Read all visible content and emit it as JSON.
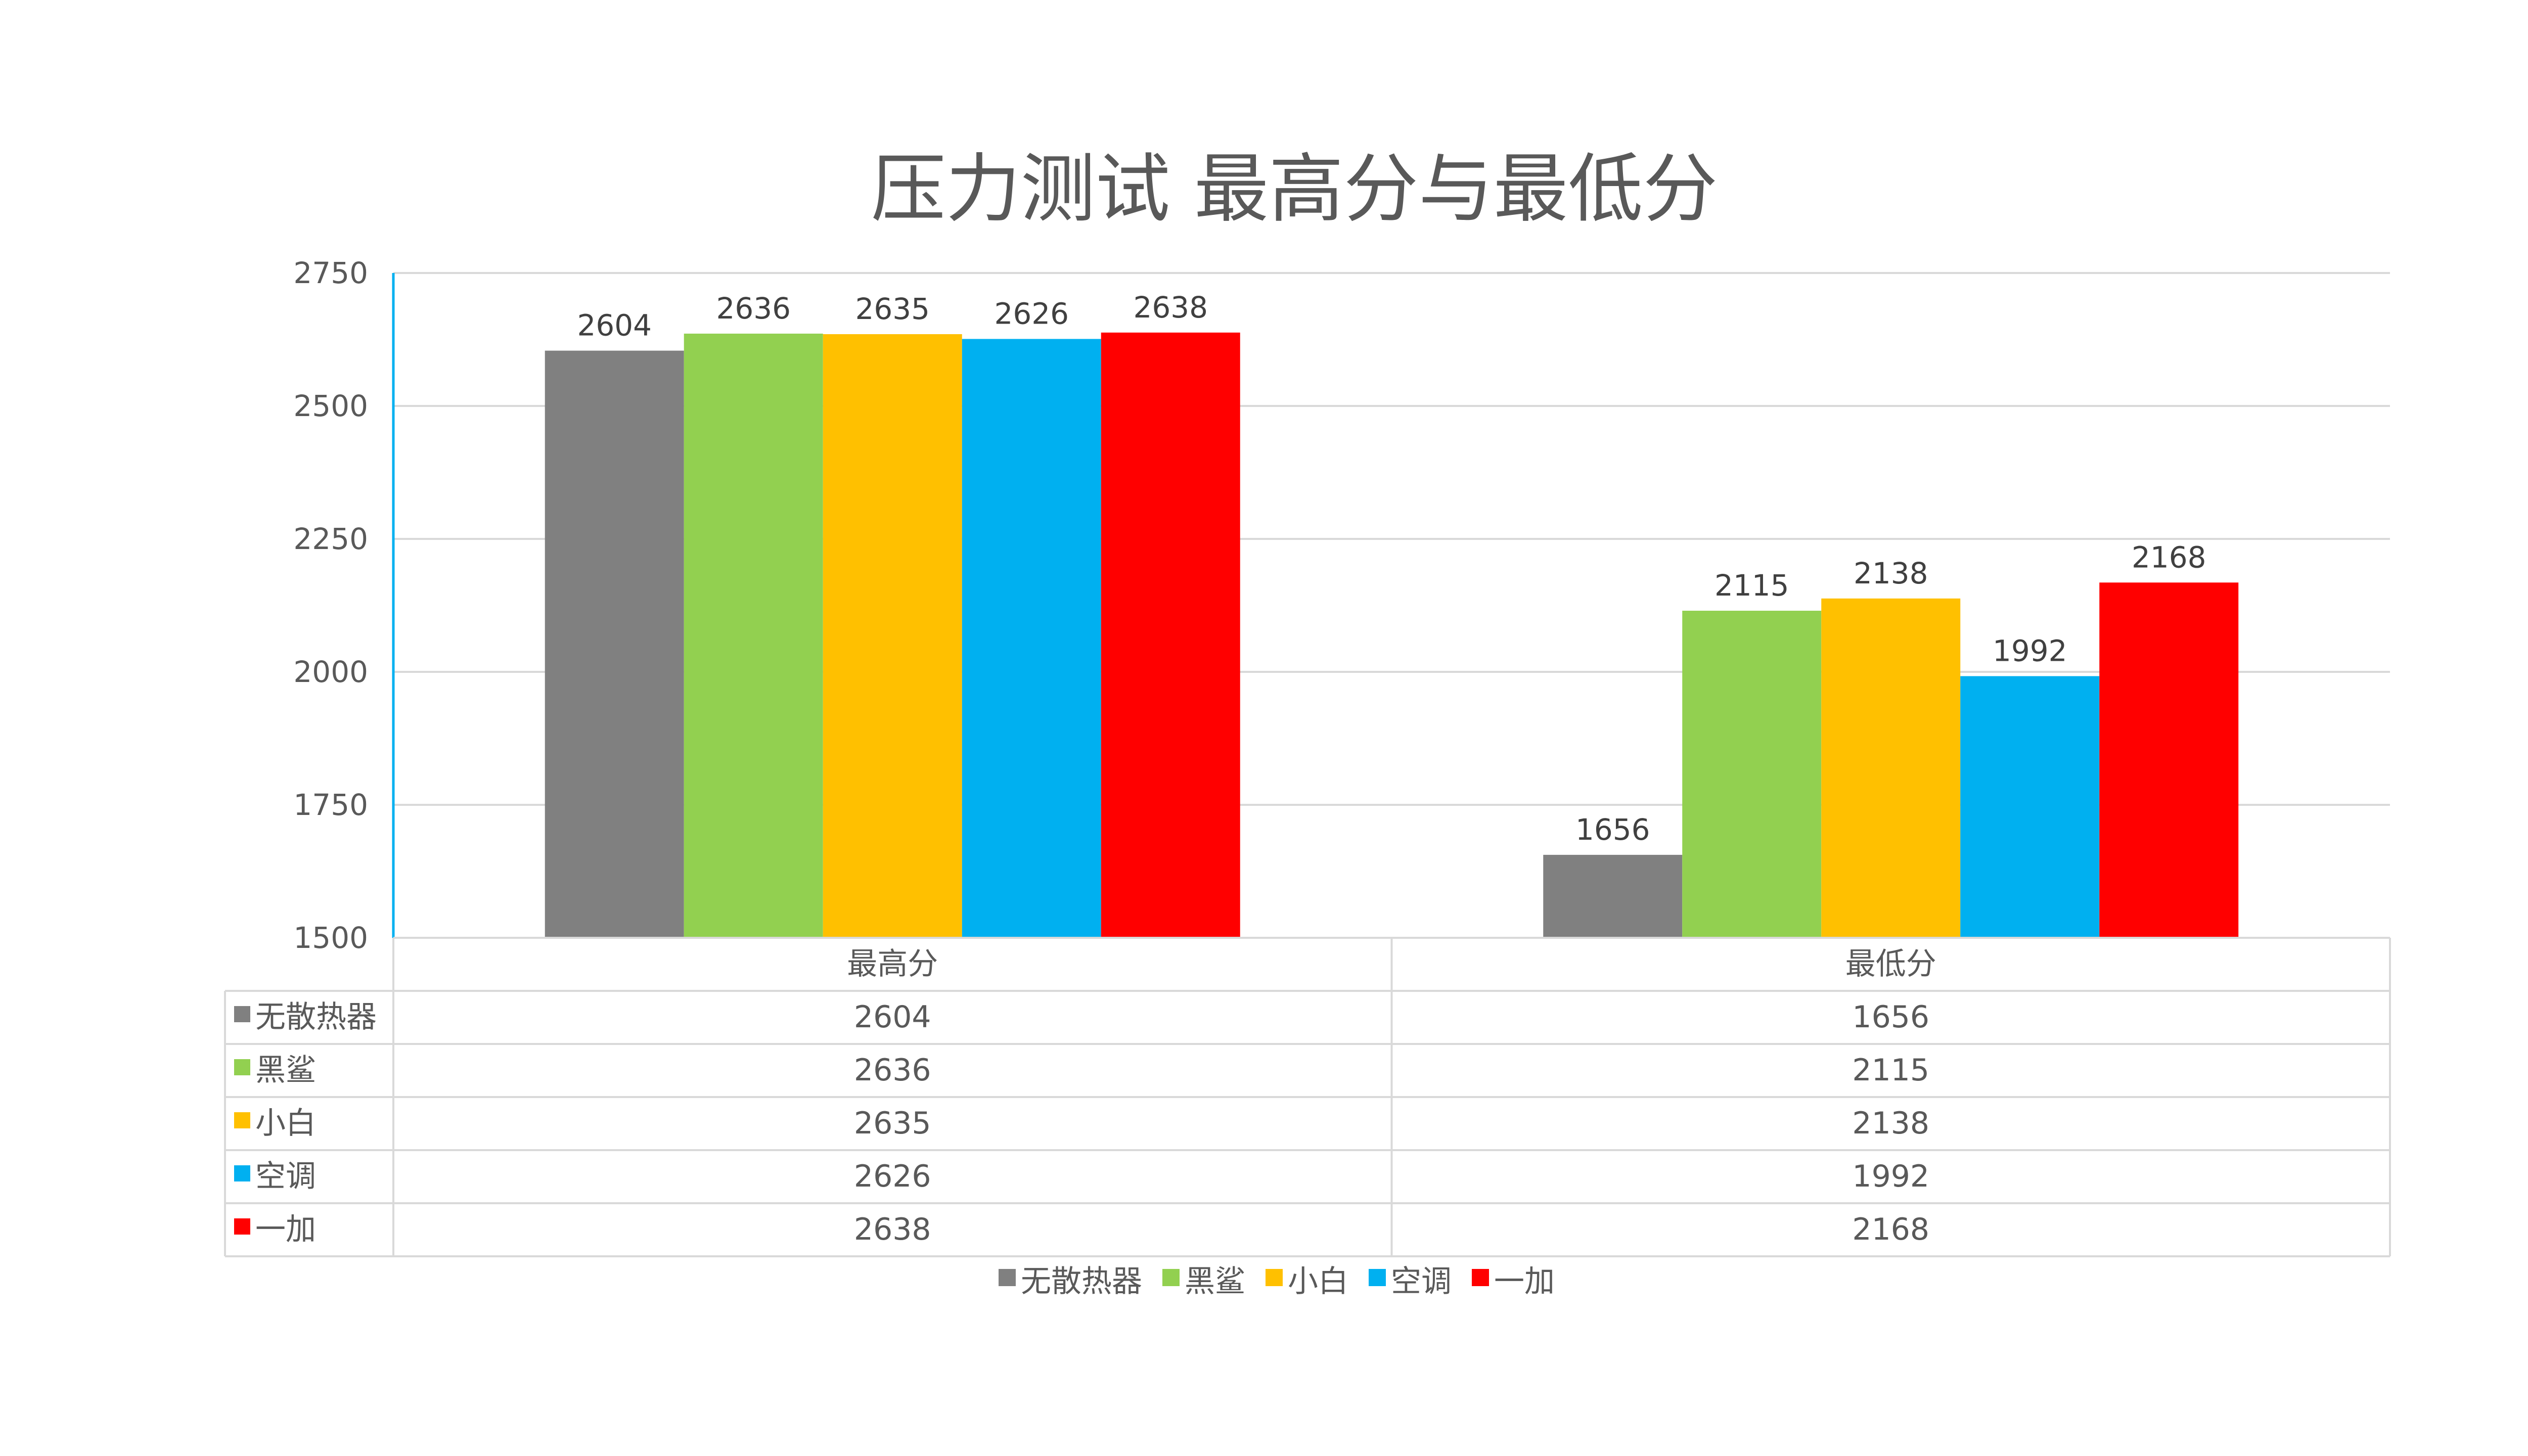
{
  "chart_data": {
    "type": "bar",
    "title": "压力测试 最高分与最低分",
    "categories": [
      "最高分",
      "最低分"
    ],
    "series": [
      {
        "name": "无散热器",
        "color": "#808080",
        "values": [
          2604,
          1656
        ]
      },
      {
        "name": "黑鲨",
        "color": "#92d050",
        "values": [
          2636,
          2115
        ]
      },
      {
        "name": "小白",
        "color": "#ffc000",
        "values": [
          2635,
          2138
        ]
      },
      {
        "name": "空调",
        "color": "#00b0f0",
        "values": [
          2626,
          1992
        ]
      },
      {
        "name": "一加",
        "color": "#ff0000",
        "values": [
          2638,
          2168
        ]
      }
    ],
    "ylim": [
      1500,
      2750
    ],
    "yticks": [
      1500,
      1750,
      2000,
      2250,
      2500,
      2750
    ],
    "grid": true,
    "data_table": true,
    "legend": "bottom"
  }
}
